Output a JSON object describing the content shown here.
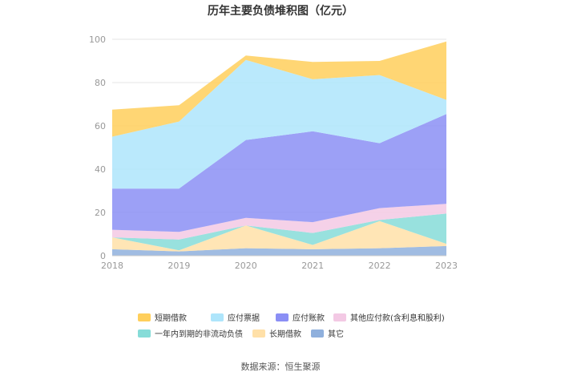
{
  "chart_data": {
    "type": "area",
    "stacked": true,
    "title": "历年主要负债堆积图（亿元）",
    "xlabel": "",
    "ylabel": "",
    "x": [
      "2018",
      "2019",
      "2020",
      "2021",
      "2022",
      "2023"
    ],
    "ylim": [
      0,
      100
    ],
    "yticks": [
      "0",
      "20",
      "40",
      "60",
      "80",
      "100"
    ],
    "grid": true,
    "legend_position": "bottom",
    "series": [
      {
        "name": "其它",
        "color": "#8fb0dd",
        "values": [
          3.0,
          2.0,
          3.5,
          3.0,
          3.5,
          4.5
        ]
      },
      {
        "name": "长期借款",
        "color": "#ffe0a8",
        "values": [
          5.5,
          0.5,
          10.5,
          2.0,
          12.5,
          1.0
        ]
      },
      {
        "name": "一年内到期的非流动负债",
        "color": "#86dcd8",
        "values": [
          0.0,
          5.0,
          0.0,
          5.5,
          0.5,
          14.0
        ]
      },
      {
        "name": "其他应付款(含利息和股利)",
        "color": "#f3c9e4",
        "values": [
          3.5,
          3.5,
          3.5,
          5.0,
          5.5,
          4.5
        ]
      },
      {
        "name": "应付账款",
        "color": "#8b8ff5",
        "values": [
          19.0,
          20.0,
          36.0,
          42.0,
          30.0,
          41.5
        ]
      },
      {
        "name": "应付票据",
        "color": "#aee5fb",
        "values": [
          24.0,
          31.0,
          37.0,
          24.0,
          31.5,
          6.5
        ]
      },
      {
        "name": "短期借款",
        "color": "#ffcf5c",
        "values": [
          12.5,
          7.5,
          2.0,
          8.0,
          6.5,
          27.0
        ]
      }
    ]
  },
  "legend_order": [
    "短期借款",
    "应付票据",
    "应付账款",
    "其他应付款(含利息和股利)",
    "一年内到期的非流动负债",
    "长期借款",
    "其它"
  ],
  "source": "数据来源：恒生聚源"
}
